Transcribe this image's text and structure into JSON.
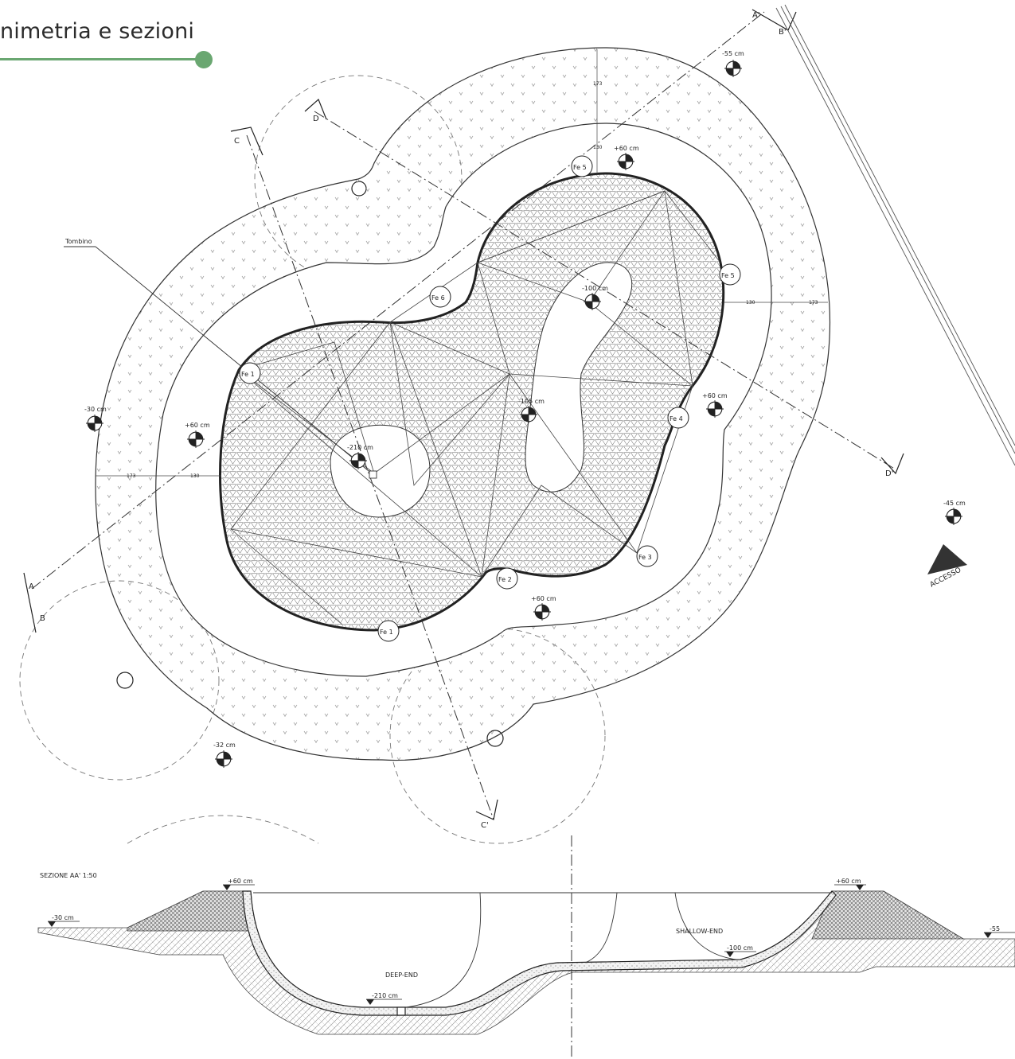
{
  "header": {
    "title": "nimetria e sezioni"
  },
  "colors": {
    "accent": "#6aa771",
    "line": "#2a2a2a",
    "hatch": "#8a8a8a"
  },
  "plan": {
    "tombino_label": "Tombino",
    "section_markers": {
      "a": "A",
      "a_prime": "A'",
      "b": "B",
      "b_prime": "B'",
      "c": "C",
      "c_prime": "C'",
      "d": "D",
      "d_prime": "D'"
    },
    "elevations": [
      "-55 cm",
      "+60 cm",
      "-100 cm",
      "-30 cm",
      "+60 cm",
      "-210 cm",
      "-105 cm",
      "+60 cm",
      "+60 cm",
      "-45 cm",
      "-32 cm"
    ],
    "fe_labels": [
      "Fe 5",
      "Fe 5",
      "Fe 6",
      "Fe 1",
      "Fe 4",
      "Fe 3",
      "Fe 2",
      "Fe 1"
    ],
    "dims": {
      "d173_top": "173",
      "d130_top": "130",
      "d130_right": "130",
      "d173_right": "173",
      "d173_left": "173",
      "d130_left": "130"
    },
    "access_label": "ACCESSO"
  },
  "section": {
    "title": "SEZIONE AA' 1:50",
    "labels": {
      "deep": "DEEP-END",
      "shallow": "SHALLOW-END"
    },
    "levels": [
      "+60 cm",
      "+60 cm",
      "-30 cm",
      "-100 cm",
      "-210 cm",
      "-55"
    ]
  }
}
